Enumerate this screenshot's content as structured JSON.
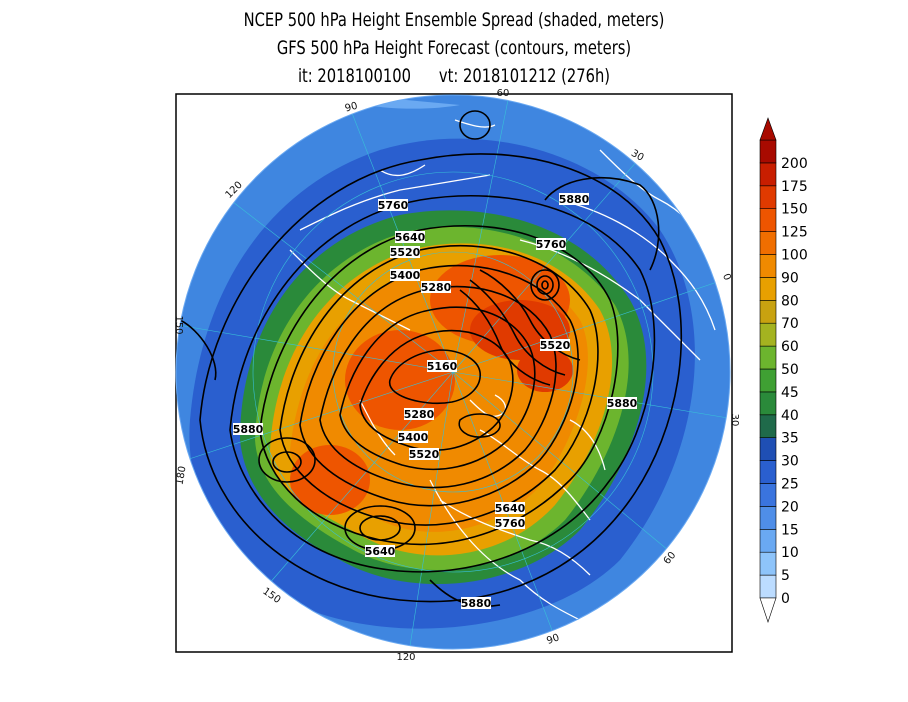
{
  "title": {
    "line1": "NCEP 500 hPa Height Ensemble Spread (shaded, meters)",
    "line2": "GFS 500 hPa Height Forecast (contours, meters)",
    "line3": "it: 2018100100      vt: 2018101212 (276h)"
  },
  "colorbar": {
    "labels": [
      "0",
      "5",
      "10",
      "15",
      "20",
      "25",
      "30",
      "35",
      "40",
      "45",
      "50",
      "60",
      "70",
      "80",
      "90",
      "100",
      "125",
      "150",
      "175",
      "200"
    ],
    "colors": [
      "#bcdcff",
      "#8ec4fa",
      "#6aa9f2",
      "#4f8ee8",
      "#3a74de",
      "#2a5fcf",
      "#1f4fb4",
      "#1f6a4a",
      "#2a8a3a",
      "#3fa033",
      "#6cb52e",
      "#a4b320",
      "#c8a210",
      "#e8a000",
      "#f08a00",
      "#f06e00",
      "#ee5500",
      "#e03a00",
      "#c81e00",
      "#a80a00"
    ]
  },
  "longitude_labels": [
    "60",
    "30",
    "0",
    "30",
    "60",
    "90",
    "120",
    "150",
    "180",
    "150",
    "120",
    "90"
  ],
  "contour_labels": [
    "5760",
    "5880",
    "5640",
    "5520",
    "5400",
    "5280",
    "5760",
    "5520",
    "5160",
    "5280",
    "5400",
    "5520",
    "5880",
    "5880",
    "5640",
    "5760",
    "5640",
    "5880"
  ],
  "map_colors": {
    "ocean_edge": "#3f86e0",
    "land_lines": "#ffffff",
    "contours": "#000000"
  }
}
